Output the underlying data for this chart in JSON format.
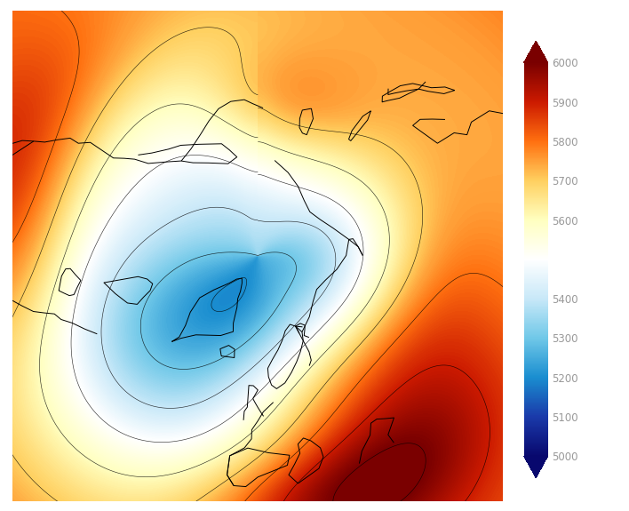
{
  "colorbar_ticks": [
    5000,
    5100,
    5200,
    5300,
    5400,
    5600,
    5700,
    5800,
    5900,
    6000
  ],
  "colormap_colors": [
    [
      0,
      "#08086e"
    ],
    [
      0.1,
      "#1a3aaa"
    ],
    [
      0.2,
      "#1a8ed0"
    ],
    [
      0.3,
      "#70c8e8"
    ],
    [
      0.4,
      "#c8e8f8"
    ],
    [
      0.5,
      "#ffffff"
    ],
    [
      0.6,
      "#ffffc0"
    ],
    [
      0.7,
      "#ffd060"
    ],
    [
      0.8,
      "#ff7010"
    ],
    [
      0.9,
      "#cc1a00"
    ],
    [
      1.0,
      "#7a0000"
    ]
  ],
  "vmin": 5000,
  "vmax": 6000,
  "background_color": "#ffffff",
  "figsize": [
    7.08,
    5.75
  ],
  "dpi": 100
}
